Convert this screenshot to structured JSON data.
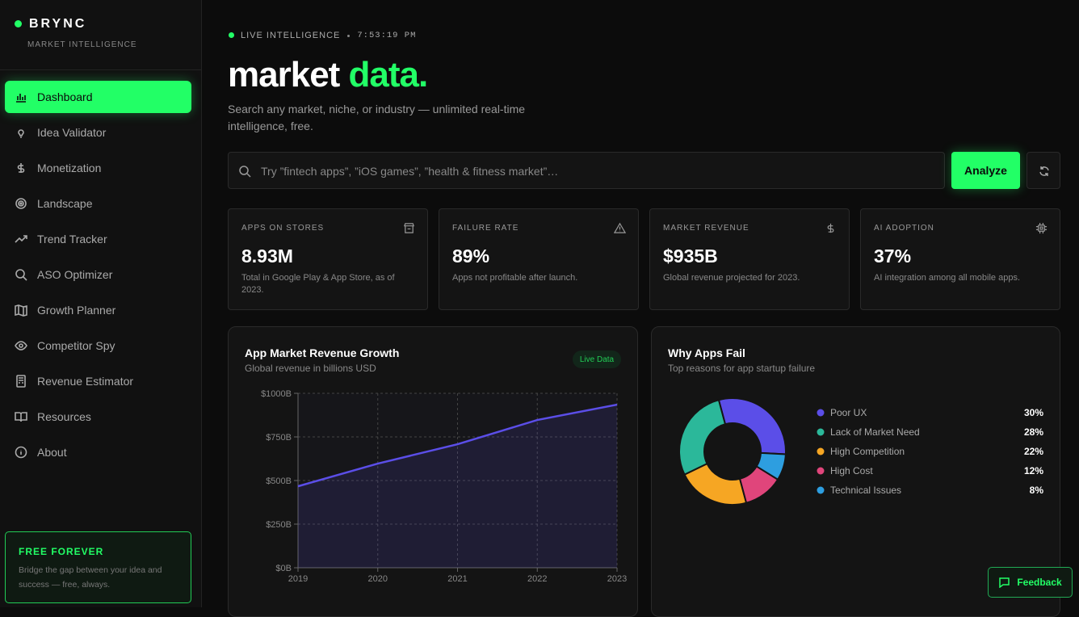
{
  "sidebar": {
    "brand": "BRYNC",
    "tagline": "MARKET INTELLIGENCE",
    "nav": [
      "Dashboard",
      "Idea Validator",
      "Monetization",
      "Landscape",
      "Trend Tracker",
      "ASO Optimizer",
      "Growth Planner",
      "Competitor Spy",
      "Revenue Estimator",
      "Resources",
      "About"
    ],
    "promo": {
      "title": "FREE FOREVER",
      "text": "Bridge the gap between your idea and success — free, always."
    }
  },
  "header": {
    "status": "LIVE INTELLIGENCE",
    "time": "7:53:19 PM",
    "title": "market",
    "title_accent": "data.",
    "subtitle": "Search any market, niche, or industry — unlimited real-time intelligence, free."
  },
  "search": {
    "placeholder": "Try ”fintech apps”, ”iOS games”, ”health & fitness market”…",
    "button": "Analyze"
  },
  "stats": [
    {
      "label": "APPS ON STORES",
      "value": "8.93M",
      "note": "Total in Google Play & App Store, as of 2023."
    },
    {
      "label": "FAILURE RATE",
      "value": "89%",
      "note": "Apps not profitable after launch."
    },
    {
      "label": "MARKET REVENUE",
      "value": "$935B",
      "note": "Global revenue projected for 2023."
    },
    {
      "label": "AI ADOPTION",
      "value": "37%",
      "note": "AI integration among all mobile apps."
    }
  ],
  "chart_data": [
    {
      "type": "line",
      "title": "App Market Revenue Growth",
      "subtitle": "Global revenue in billions USD",
      "badge": "Live Data",
      "x": [
        2019,
        2020,
        2021,
        2022,
        2023
      ],
      "values": [
        467,
        597,
        708,
        847,
        935
      ],
      "color": "#5b4ee8",
      "xlim": [
        2019,
        2023
      ],
      "xticks": [
        2019,
        2020,
        2021,
        2022,
        2023
      ],
      "ylim": [
        0,
        1000
      ],
      "yticks": [
        {
          "value": 0,
          "label": "$0B"
        },
        {
          "value": 250,
          "label": "$250B"
        },
        {
          "value": 500,
          "label": "$500B"
        },
        {
          "value": 750,
          "label": "$750B"
        },
        {
          "value": 1000,
          "label": "$1000B"
        }
      ],
      "grid": true
    },
    {
      "type": "donut",
      "title": "Why Apps Fail",
      "subtitle": "Top reasons for app startup failure",
      "categories": [
        "Poor UX",
        "Lack of Market Need",
        "High Competition",
        "High Cost",
        "Technical Issues"
      ],
      "values": [
        30,
        28,
        22,
        12,
        8
      ],
      "value_labels": [
        "30%",
        "28%",
        "22%",
        "12%",
        "8%"
      ],
      "colors": [
        "#5b4ee8",
        "#2bb89a",
        "#f6a623",
        "#e0457b",
        "#2d9ee0"
      ]
    }
  ],
  "feedback": "Feedback"
}
